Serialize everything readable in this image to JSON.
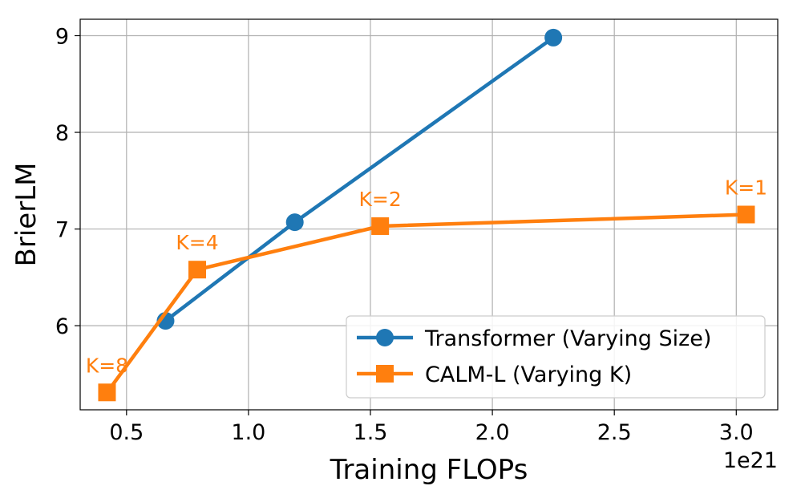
{
  "chart_data": {
    "type": "line",
    "title": "",
    "xlabel": "Training FLOPs",
    "ylabel": "BrierLM",
    "x_offset_label": "1e21",
    "xlim": [
      0.31,
      3.17
    ],
    "ylim": [
      5.13,
      9.17
    ],
    "xticks": [
      0.5,
      1.0,
      1.5,
      2.0,
      2.5,
      3.0
    ],
    "xtick_labels": [
      "0.5",
      "1.0",
      "1.5",
      "2.0",
      "2.5",
      "3.0"
    ],
    "yticks": [
      6,
      7,
      8,
      9
    ],
    "ytick_labels": [
      "6",
      "7",
      "8",
      "9"
    ],
    "grid": true,
    "legend_position": "lower-right",
    "series": [
      {
        "name": "Transformer (Varying Size)",
        "color": "#1f77b4",
        "marker": "circle",
        "x": [
          0.66,
          1.19,
          2.25
        ],
        "y": [
          6.05,
          7.07,
          8.98
        ]
      },
      {
        "name": "CALM-L (Varying K)",
        "color": "#ff7f0e",
        "marker": "square",
        "x": [
          0.42,
          0.79,
          1.54,
          3.04
        ],
        "y": [
          5.31,
          6.58,
          7.03,
          7.15
        ],
        "point_labels": [
          "K=8",
          "K=4",
          "K=2",
          "K=1"
        ]
      }
    ]
  }
}
